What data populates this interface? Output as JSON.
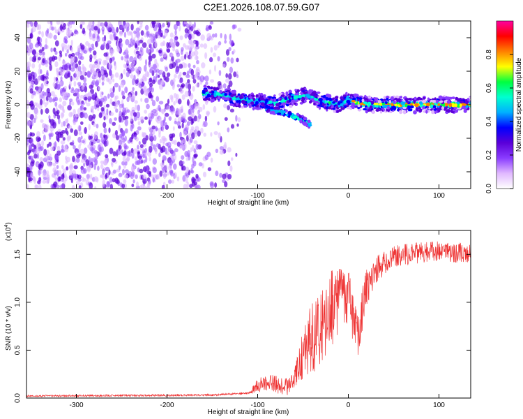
{
  "title": "C2E1.2026.108.07.59.G07",
  "chart_data": [
    {
      "type": "heatmap",
      "name": "spectrogram",
      "xlabel": "Height of straight line (km)",
      "ylabel": "Frequency (Hz)",
      "xlim": [
        -355,
        135
      ],
      "ylim": [
        -50,
        50
      ],
      "xticks": [
        -300,
        -200,
        -100,
        0,
        100
      ],
      "yticks": [
        -40,
        -20,
        0,
        20,
        40
      ],
      "colorbar": {
        "label": "Normalized spectral amplitude",
        "range": [
          0,
          1
        ],
        "ticks": [
          0.0,
          0.2,
          0.4,
          0.6,
          0.8
        ],
        "colors": [
          "#ffffff",
          "#e0b8ff",
          "#8a3cff",
          "#5a00d8",
          "#0000ff",
          "#00b0ff",
          "#00ffd0",
          "#00ff40",
          "#ffff00",
          "#ff8000",
          "#ff0000",
          "#ff00a0"
        ]
      },
      "noise_region": {
        "x_from": -355,
        "x_to": -130,
        "amplitude": [
          0.05,
          0.2
        ]
      },
      "ridge": [
        {
          "x": -160,
          "y": 7
        },
        {
          "x": -140,
          "y": 6
        },
        {
          "x": -120,
          "y": 3
        },
        {
          "x": -100,
          "y": 2
        },
        {
          "x": -80,
          "y": 1
        },
        {
          "x": -60,
          "y": 4
        },
        {
          "x": -45,
          "y": 6
        },
        {
          "x": -30,
          "y": 2
        },
        {
          "x": -10,
          "y": 0
        },
        {
          "x": 0,
          "y": 3
        },
        {
          "x": 20,
          "y": 0
        },
        {
          "x": 60,
          "y": 0
        },
        {
          "x": 100,
          "y": 0
        },
        {
          "x": 135,
          "y": 0
        }
      ],
      "branch": [
        {
          "x": -90,
          "y": -2
        },
        {
          "x": -70,
          "y": -5
        },
        {
          "x": -50,
          "y": -9
        },
        {
          "x": -42,
          "y": -12
        }
      ]
    },
    {
      "type": "line",
      "name": "snr",
      "xlabel": "Height of straight line (km)",
      "ylabel": "SNR (10 * v/v)",
      "y_multiplier": "(x10",
      "y_multiplier_exp": "4",
      "xlim": [
        -355,
        135
      ],
      "ylim": [
        0,
        1.75
      ],
      "xticks": [
        -300,
        -200,
        -100,
        0,
        100
      ],
      "yticks": [
        0.0,
        0.5,
        1.0,
        1.5
      ],
      "color": "#ee3333",
      "envelope": [
        {
          "x": -355,
          "y": 0.02
        },
        {
          "x": -150,
          "y": 0.03
        },
        {
          "x": -110,
          "y": 0.05
        },
        {
          "x": -100,
          "y": 0.12
        },
        {
          "x": -85,
          "y": 0.15
        },
        {
          "x": -75,
          "y": 0.12
        },
        {
          "x": -65,
          "y": 0.1
        },
        {
          "x": -55,
          "y": 0.3
        },
        {
          "x": -45,
          "y": 0.55
        },
        {
          "x": -30,
          "y": 0.65
        },
        {
          "x": -20,
          "y": 0.85
        },
        {
          "x": -10,
          "y": 1.0
        },
        {
          "x": 0,
          "y": 1.05
        },
        {
          "x": 10,
          "y": 0.6
        },
        {
          "x": 20,
          "y": 1.15
        },
        {
          "x": 30,
          "y": 1.3
        },
        {
          "x": 45,
          "y": 1.45
        },
        {
          "x": 70,
          "y": 1.5
        },
        {
          "x": 100,
          "y": 1.52
        },
        {
          "x": 135,
          "y": 1.5
        }
      ],
      "noise_scale": [
        {
          "x": -355,
          "y": 0.01
        },
        {
          "x": -110,
          "y": 0.01
        },
        {
          "x": -100,
          "y": 0.08
        },
        {
          "x": -60,
          "y": 0.1
        },
        {
          "x": -45,
          "y": 0.35
        },
        {
          "x": -15,
          "y": 0.45
        },
        {
          "x": 0,
          "y": 0.3
        },
        {
          "x": 20,
          "y": 0.2
        },
        {
          "x": 40,
          "y": 0.12
        },
        {
          "x": 135,
          "y": 0.1
        }
      ]
    }
  ]
}
